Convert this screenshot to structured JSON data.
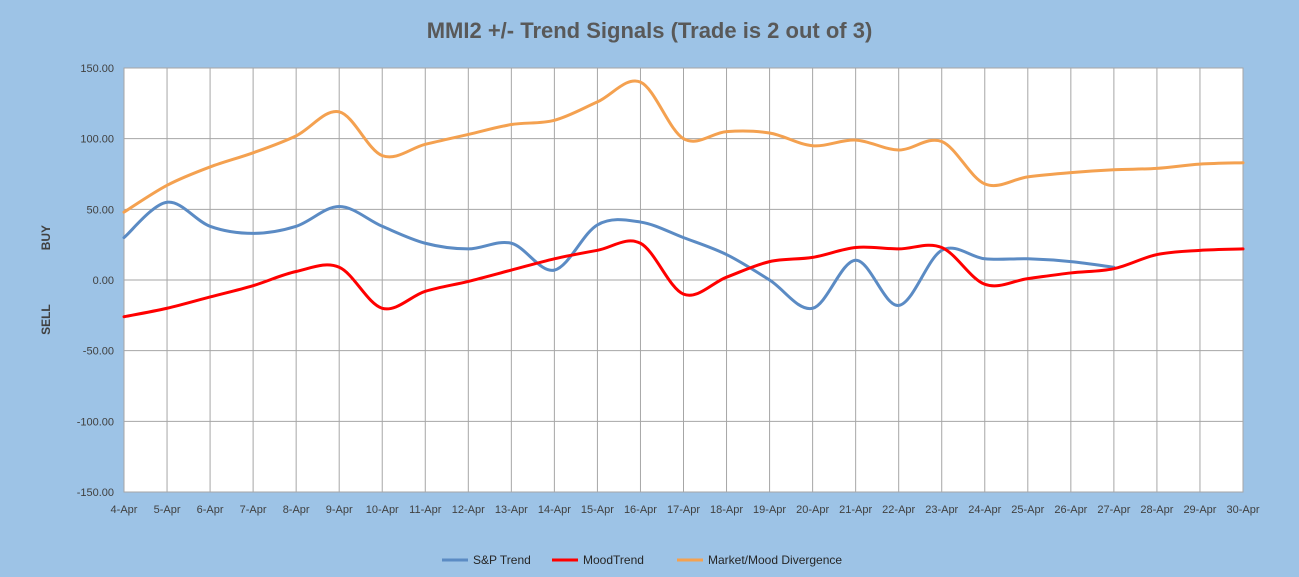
{
  "chart_data": {
    "type": "line",
    "title": "MMI2 +/- Trend Signals (Trade is 2 out of 3)",
    "ylabel_top": "BUY",
    "ylabel_bottom": "SELL",
    "ylim": [
      -150,
      150
    ],
    "yticks": [
      150,
      100,
      50,
      0,
      -50,
      -100,
      -150
    ],
    "ytick_labels": [
      "150.00",
      "100.00",
      "50.00",
      "0.00",
      "-50.00",
      "-100.00",
      "-150.00"
    ],
    "categories": [
      "4-Apr",
      "5-Apr",
      "6-Apr",
      "7-Apr",
      "8-Apr",
      "9-Apr",
      "10-Apr",
      "11-Apr",
      "12-Apr",
      "13-Apr",
      "14-Apr",
      "15-Apr",
      "16-Apr",
      "17-Apr",
      "18-Apr",
      "19-Apr",
      "20-Apr",
      "21-Apr",
      "22-Apr",
      "23-Apr",
      "24-Apr",
      "25-Apr",
      "26-Apr",
      "27-Apr",
      "28-Apr",
      "29-Apr",
      "30-Apr"
    ],
    "grid": true,
    "legend_position": "bottom",
    "series": [
      {
        "name": "S&P Trend",
        "color": "#5b8bc4",
        "values": [
          30,
          55,
          38,
          33,
          38,
          52,
          38,
          26,
          22,
          26,
          7,
          39,
          41,
          30,
          18,
          0,
          -20,
          14,
          -18,
          21,
          15,
          15,
          13,
          9,
          null,
          null,
          null
        ]
      },
      {
        "name": "MoodTrend",
        "color": "#ff0000",
        "values": [
          -26,
          -20,
          -12,
          -4,
          6,
          9,
          -20,
          -8,
          -1,
          7,
          15,
          21,
          26,
          -10,
          2,
          13,
          16,
          23,
          22,
          23,
          -3,
          1,
          5,
          8,
          18,
          21,
          22
        ]
      },
      {
        "name": "Market/Mood Divergence",
        "color": "#f4a150",
        "values": [
          48,
          67,
          80,
          90,
          102,
          119,
          88,
          96,
          103,
          110,
          113,
          126,
          140,
          100,
          105,
          104,
          95,
          99,
          92,
          98,
          68,
          73,
          76,
          78,
          79,
          82,
          83
        ]
      }
    ]
  }
}
